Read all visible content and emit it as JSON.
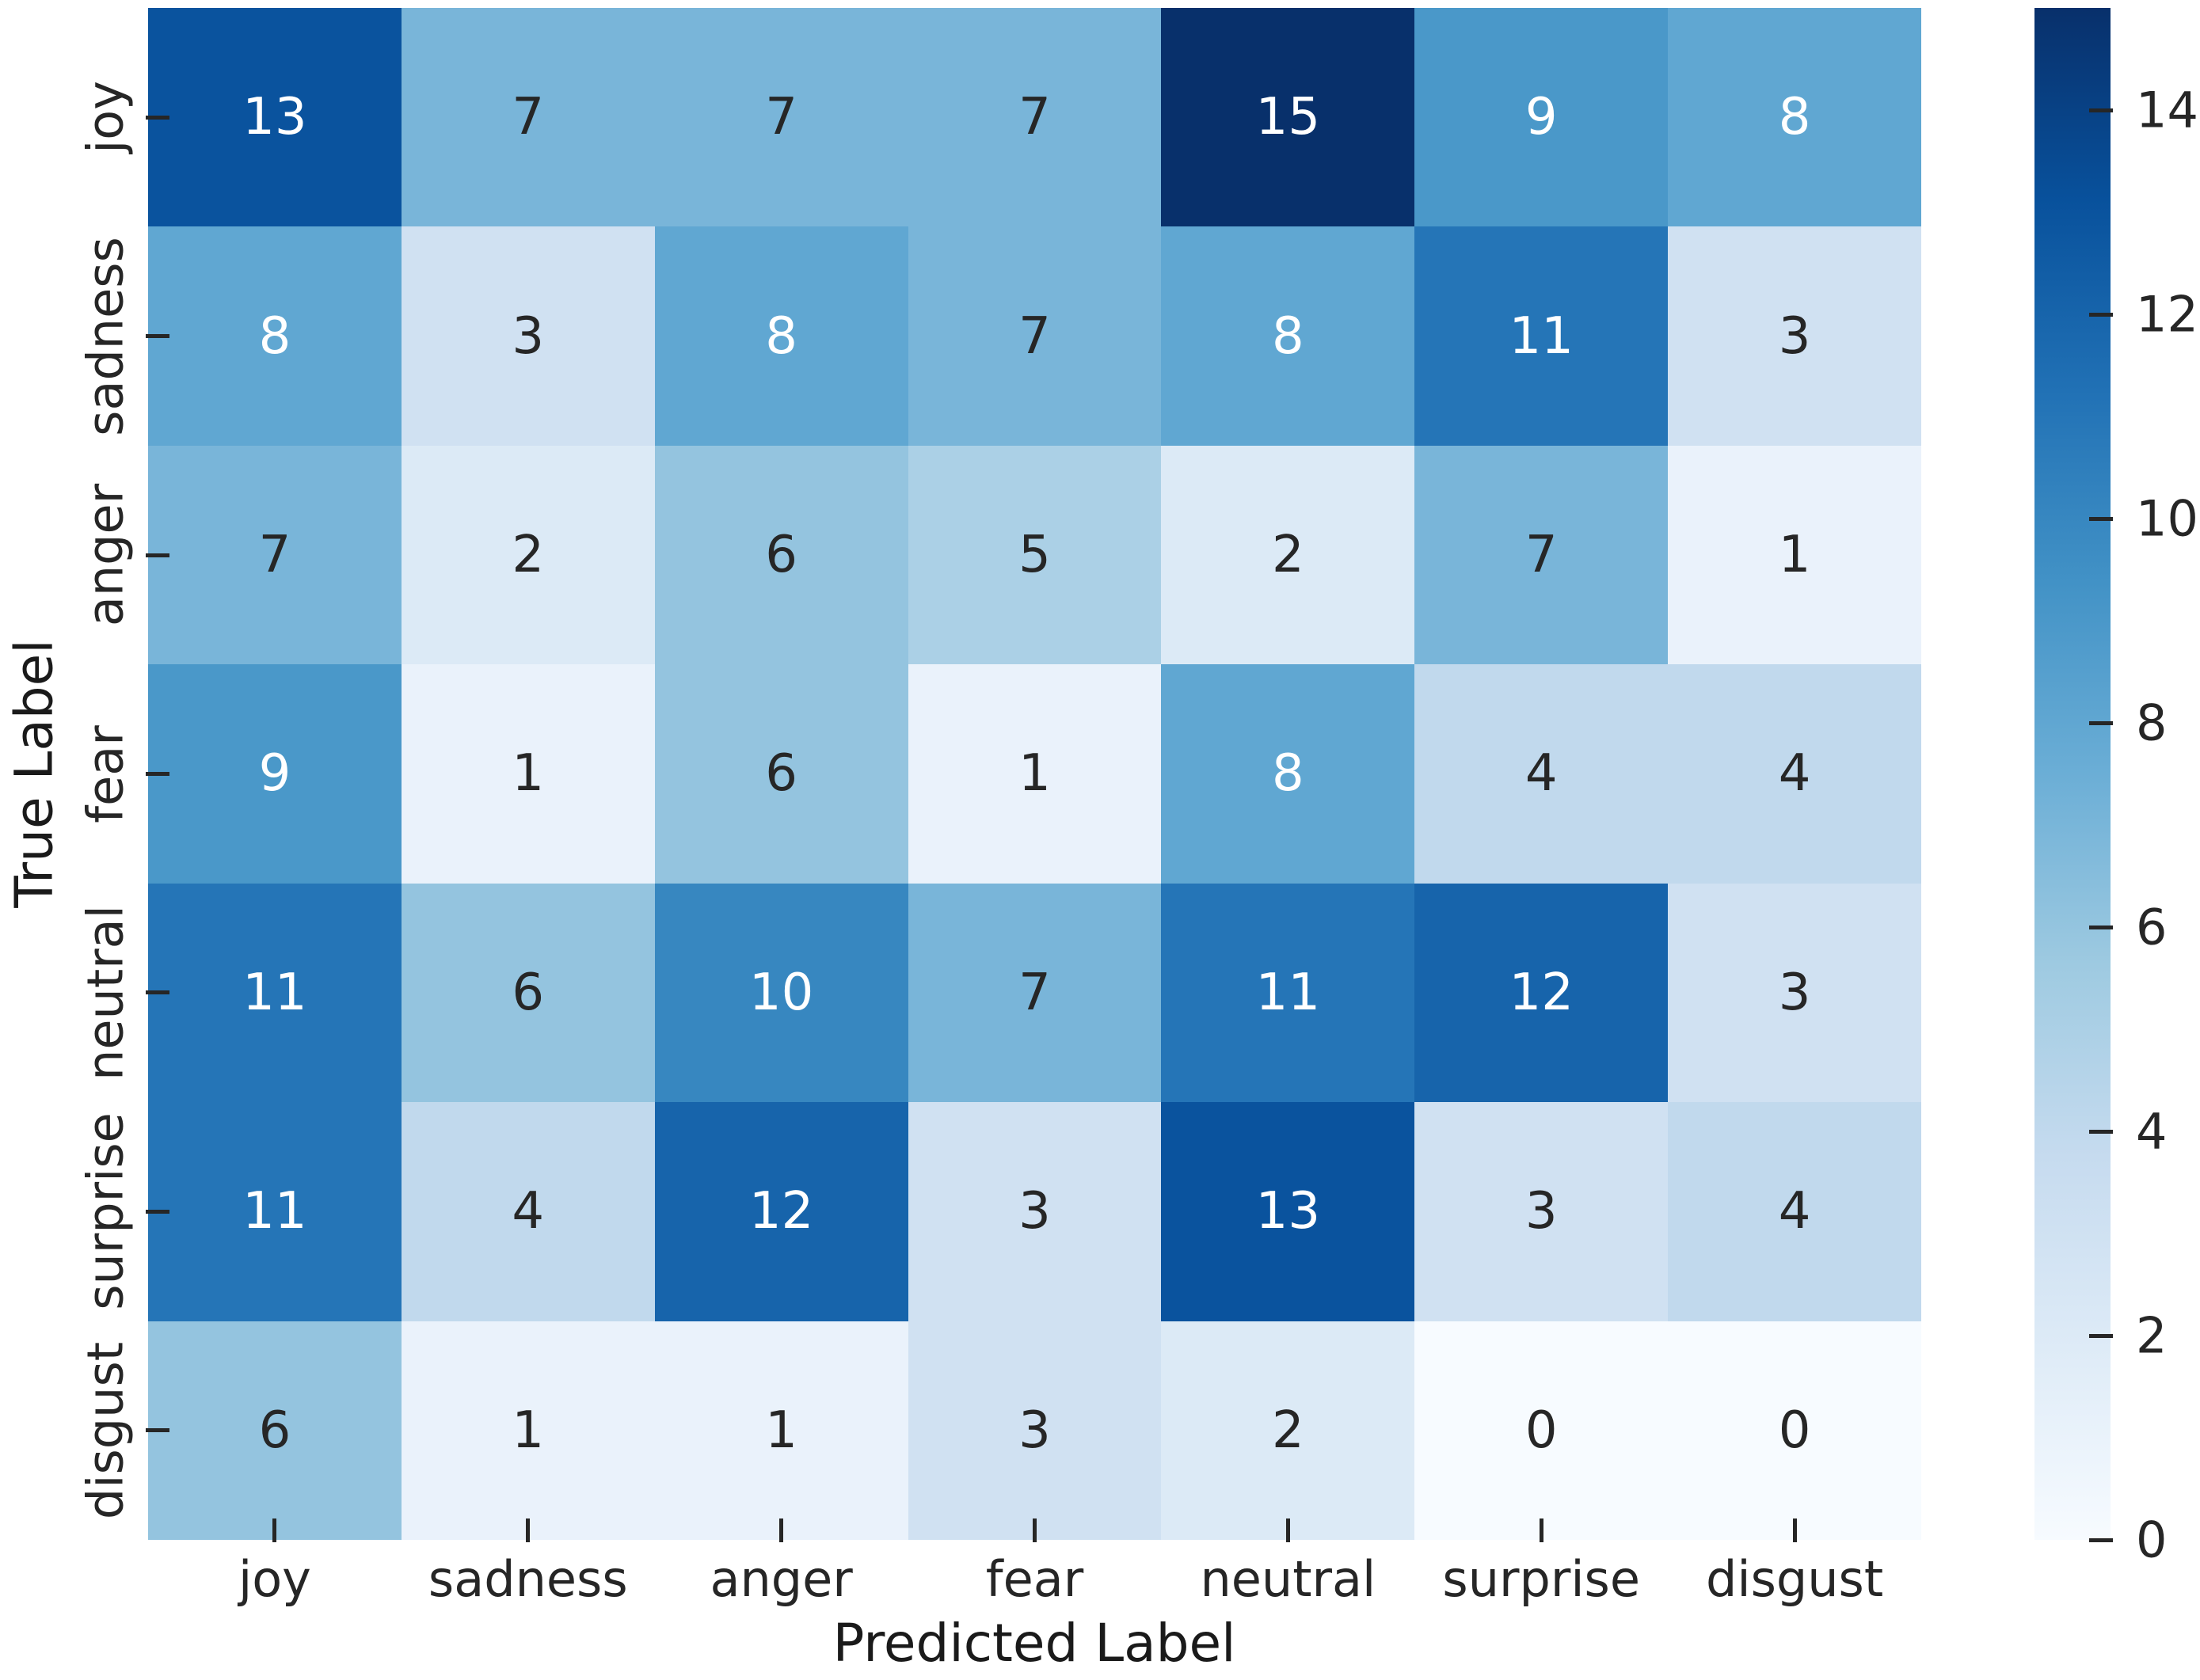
{
  "chart_data": {
    "type": "heatmap",
    "title": "",
    "xlabel": "Predicted Label",
    "ylabel": "True Label",
    "x_categories": [
      "joy",
      "sadness",
      "anger",
      "fear",
      "neutral",
      "surprise",
      "disgust"
    ],
    "y_categories": [
      "joy",
      "sadness",
      "anger",
      "fear",
      "neutral",
      "surprise",
      "disgust"
    ],
    "matrix": [
      [
        13,
        7,
        7,
        7,
        15,
        9,
        8
      ],
      [
        8,
        3,
        8,
        7,
        8,
        11,
        3
      ],
      [
        7,
        2,
        6,
        5,
        2,
        7,
        1
      ],
      [
        9,
        1,
        6,
        1,
        8,
        4,
        4
      ],
      [
        11,
        6,
        10,
        7,
        11,
        12,
        3
      ],
      [
        11,
        4,
        12,
        3,
        13,
        3,
        4
      ],
      [
        6,
        1,
        1,
        3,
        2,
        0,
        0
      ]
    ],
    "vmin": 0,
    "vmax": 15,
    "colorbar_ticks": [
      0,
      2,
      4,
      6,
      8,
      10,
      12,
      14
    ],
    "colormap": "Blues",
    "colormap_stops": [
      "#f7fbff",
      "#deebf7",
      "#c6dbef",
      "#9ecae1",
      "#6baed6",
      "#4292c6",
      "#2171b5",
      "#08519c",
      "#08306b"
    ],
    "annotation_colors": {
      "on_light": "#262626",
      "on_dark": "#ffffff"
    },
    "white_text_threshold": 8,
    "grid": false,
    "legend_position": "colorbar-right"
  }
}
